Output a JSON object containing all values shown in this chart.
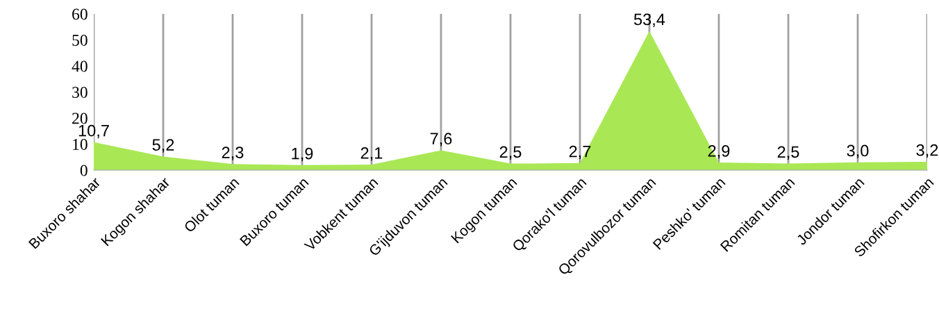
{
  "chart_data": {
    "type": "area",
    "categories": [
      "Buxoro shahar",
      "Kogon shahar",
      "Olot tuman",
      "Buxoro tuman",
      "Vobkent tuman",
      "G'ijduvon tuman",
      "Kogon tuman",
      "Qorako'l tuman",
      "Qorovulbozor tuman",
      "Peshko' tuman",
      "Romitan tuman",
      "Jondor tuman",
      "Shofirkon tuman"
    ],
    "series": [
      {
        "color": "#a9e854",
        "values": [
          10.7,
          5.2,
          2.3,
          1.9,
          2.1,
          7.6,
          2.5,
          2.7,
          53.4,
          2.9,
          2.5,
          3.0,
          3.2
        ],
        "value_labels": [
          "10,7",
          "5,2",
          "2,3",
          "1,9",
          "2,1",
          "7,6",
          "2,5",
          "2,7",
          "53,4",
          "2,9",
          "2,5",
          "3,0",
          "3,2"
        ]
      }
    ],
    "ylim": [
      0,
      60
    ],
    "yticks": [
      0,
      10,
      20,
      30,
      40,
      50,
      60
    ],
    "grid": "x"
  }
}
